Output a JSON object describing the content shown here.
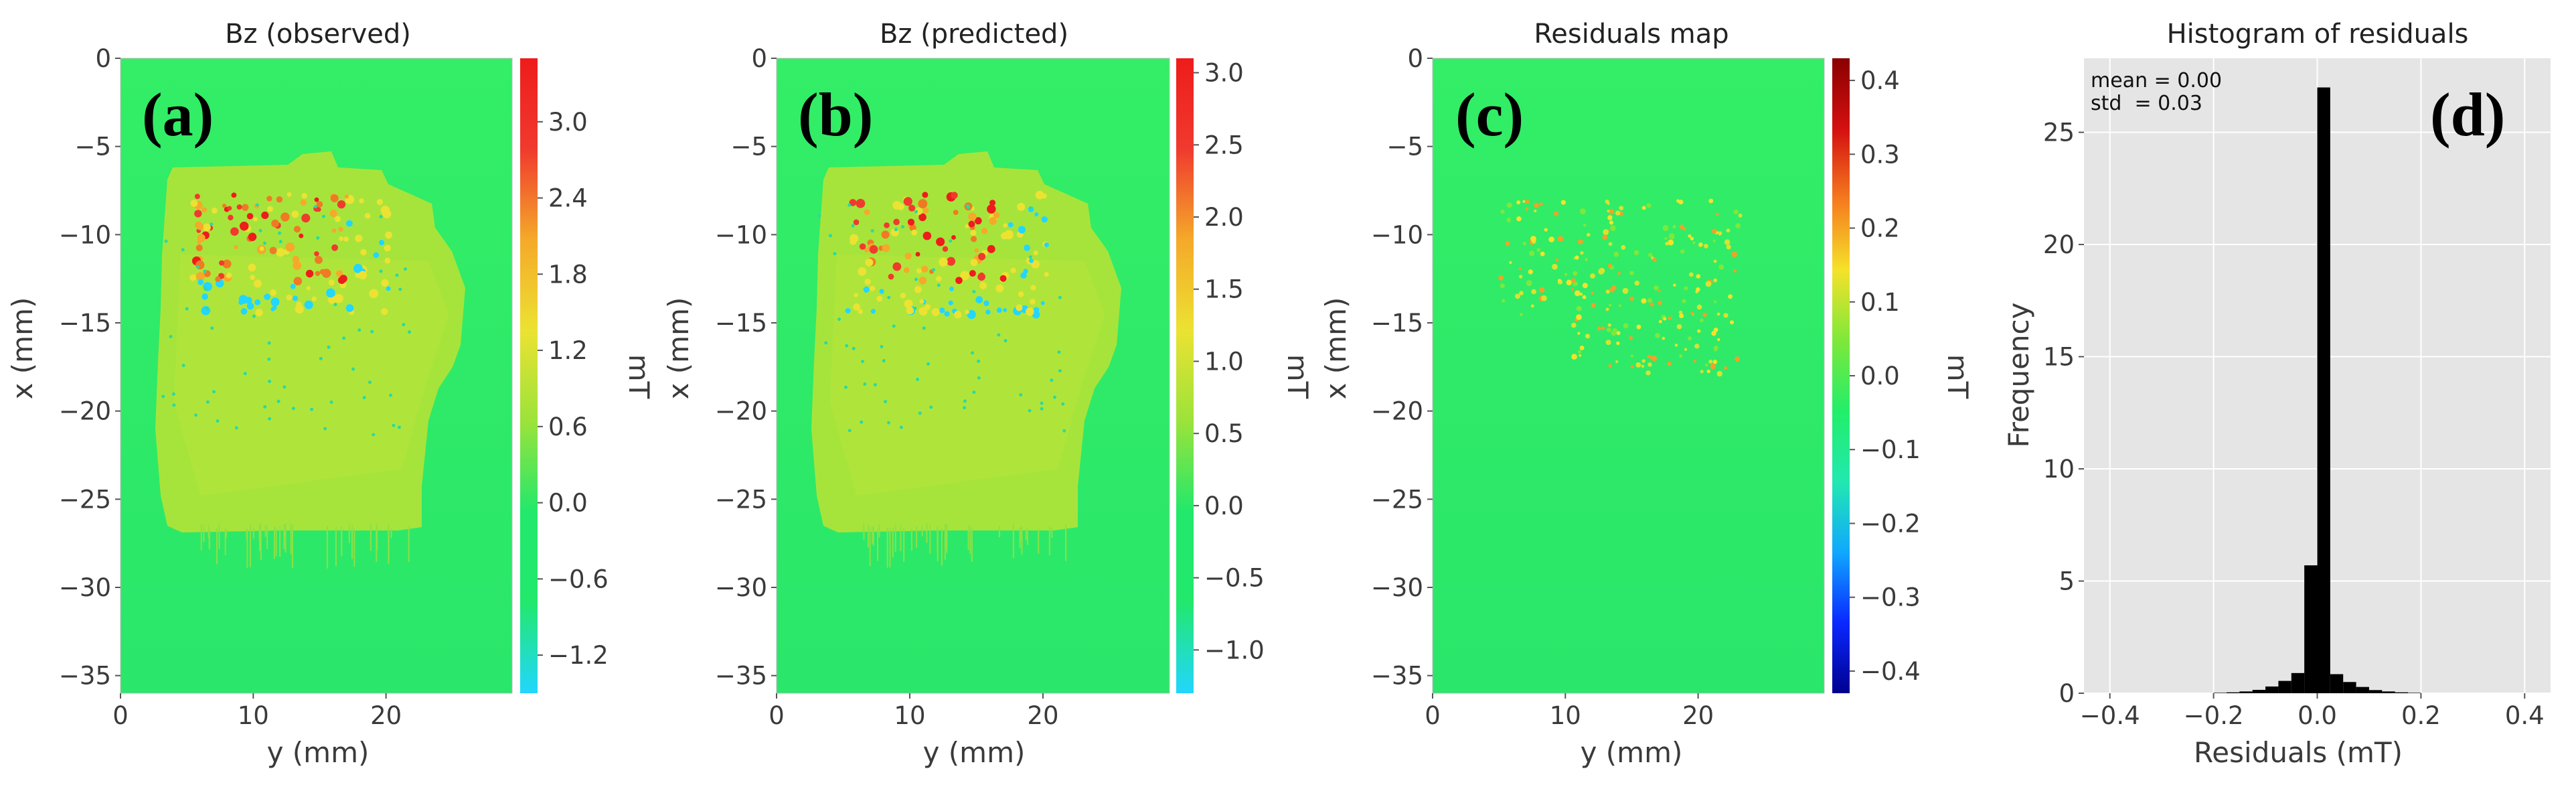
{
  "panel_labels": [
    "(a)",
    "(b)",
    "(c)",
    "(d)"
  ],
  "colorbar_unit": "mT",
  "chart_data": [
    {
      "type": "heatmap",
      "title": "Bz (observed)",
      "xlabel": "y (mm)",
      "ylabel": "x (mm)",
      "xlim": [
        0,
        29.5
      ],
      "ylim": [
        -36,
        0
      ],
      "xticks": [
        0,
        10,
        20
      ],
      "xtick_labels": [
        "0",
        "10",
        "20"
      ],
      "yticks": [
        0,
        -5,
        -10,
        -15,
        -20,
        -25,
        -30,
        -35
      ],
      "ytick_labels": [
        "0",
        "−5",
        "−10",
        "−15",
        "−20",
        "−25",
        "−30",
        "−35"
      ],
      "colorbar": {
        "label": "mT",
        "range": [
          -1.5,
          3.5
        ],
        "ticks": [
          3.0,
          2.4,
          1.8,
          1.2,
          0.6,
          0.0,
          -0.6,
          -1.2
        ],
        "tick_labels": [
          "3.0",
          "2.4",
          "1.8",
          "1.2",
          "0.6",
          "0.0",
          "−0.6",
          "−1.2"
        ],
        "gradient": [
          "#22d6ff",
          "#22e86c",
          "#22e86c",
          "#9be33a",
          "#ece232",
          "#f5a92a",
          "#f03a2e",
          "#ee1c1c"
        ]
      },
      "background_value": 0.0,
      "field_description": "sample region ~0.3–1.0 mT with dotted high-field cluster up to ~3 mT"
    },
    {
      "type": "heatmap",
      "title": "Bz (predicted)",
      "xlabel": "y (mm)",
      "ylabel": "x (mm)",
      "xlim": [
        0,
        29.5
      ],
      "ylim": [
        -36,
        0
      ],
      "xticks": [
        0,
        10,
        20
      ],
      "xtick_labels": [
        "0",
        "10",
        "20"
      ],
      "yticks": [
        0,
        -5,
        -10,
        -15,
        -20,
        -25,
        -30,
        -35
      ],
      "ytick_labels": [
        "0",
        "−5",
        "−10",
        "−15",
        "−20",
        "−25",
        "−30",
        "−35"
      ],
      "colorbar": {
        "label": "mT",
        "range": [
          -1.3,
          3.1
        ],
        "ticks": [
          3.0,
          2.5,
          2.0,
          1.5,
          1.0,
          0.5,
          0.0,
          -0.5,
          -1.0
        ],
        "tick_labels": [
          "3.0",
          "2.5",
          "2.0",
          "1.5",
          "1.0",
          "0.5",
          "0.0",
          "−0.5",
          "−1.0"
        ],
        "gradient": [
          "#22d6ff",
          "#22e86c",
          "#22e86c",
          "#9be33a",
          "#ece232",
          "#f5a92a",
          "#f03a2e",
          "#ee1c1c"
        ]
      },
      "background_value": 0.0
    },
    {
      "type": "heatmap",
      "title": "Residuals map",
      "xlabel": "y (mm)",
      "ylabel": "x (mm)",
      "xlim": [
        0,
        29.5
      ],
      "ylim": [
        -36,
        0
      ],
      "xticks": [
        0,
        10,
        20
      ],
      "xtick_labels": [
        "0",
        "10",
        "20"
      ],
      "yticks": [
        0,
        -5,
        -10,
        -15,
        -20,
        -25,
        -30,
        -35
      ],
      "ytick_labels": [
        "0",
        "−5",
        "−10",
        "−15",
        "−20",
        "−25",
        "−30",
        "−35"
      ],
      "colorbar": {
        "label": "mT",
        "range": [
          -0.43,
          0.43
        ],
        "ticks": [
          0.4,
          0.3,
          0.2,
          0.1,
          0.0,
          -0.1,
          -0.2,
          -0.3,
          -0.4
        ],
        "tick_labels": [
          "0.4",
          "0.3",
          "0.2",
          "0.1",
          "0.0",
          "−0.1",
          "−0.2",
          "−0.3",
          "−0.4"
        ],
        "gradient": [
          "#00008f",
          "#0a28ff",
          "#10a8ff",
          "#22e8b0",
          "#22ee6a",
          "#7ee83a",
          "#f5e22a",
          "#f57a1e",
          "#d41010",
          "#8a0000"
        ]
      },
      "background_value": 0.0
    },
    {
      "type": "bar",
      "title": "Histogram of residuals",
      "xlabel": "Residuals (mT)",
      "ylabel": "Frequency",
      "xlim": [
        -0.45,
        0.45
      ],
      "ylim": [
        0,
        28.3
      ],
      "xticks": [
        -0.4,
        -0.2,
        0.0,
        0.2,
        0.4
      ],
      "xtick_labels": [
        "−0.4",
        "−0.2",
        "0.0",
        "0.2",
        "0.4"
      ],
      "yticks": [
        0,
        5,
        10,
        15,
        20,
        25
      ],
      "ytick_labels": [
        "0",
        "5",
        "10",
        "15",
        "20",
        "25"
      ],
      "grid": true,
      "annotations": [
        "mean = 0.00",
        "std  = 0.03"
      ],
      "bin_width": 0.025,
      "bin_centers": [
        -0.1875,
        -0.1625,
        -0.1375,
        -0.1125,
        -0.0875,
        -0.0625,
        -0.0375,
        -0.0125,
        0.0125,
        0.0375,
        0.0625,
        0.0875,
        0.1125,
        0.1375,
        0.1625,
        0.1875
      ],
      "values": [
        0.02,
        0.04,
        0.08,
        0.15,
        0.3,
        0.55,
        0.9,
        5.7,
        27.0,
        0.85,
        0.5,
        0.28,
        0.14,
        0.08,
        0.04,
        0.02
      ]
    }
  ]
}
